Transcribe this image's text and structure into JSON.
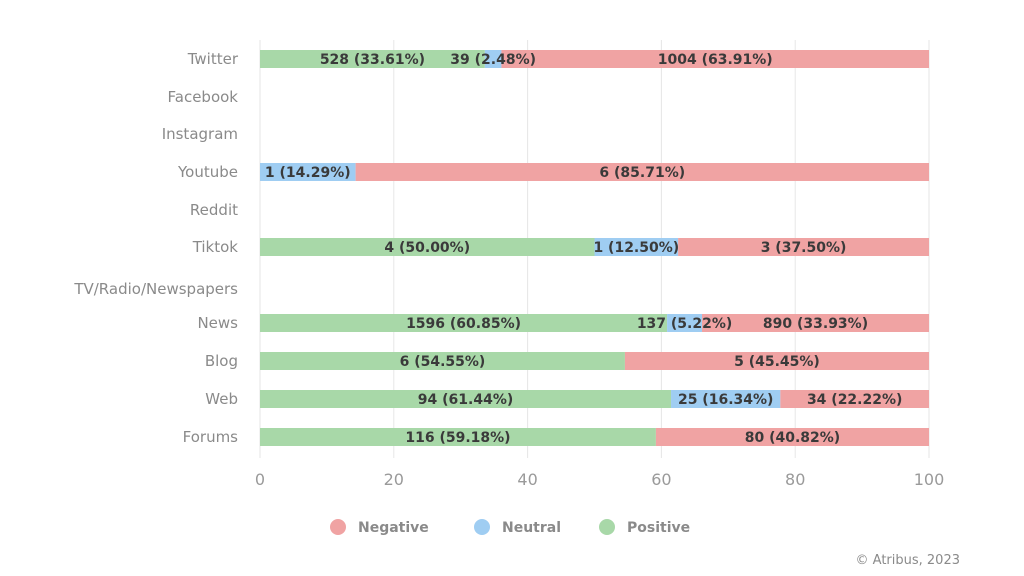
{
  "chart_data": {
    "type": "bar",
    "orientation": "horizontal",
    "stacked": true,
    "categories": [
      "Twitter",
      "Facebook",
      "Instagram",
      "Youtube",
      "Reddit",
      "Tiktok",
      "TV/Radio/Newspapers",
      "News",
      "Blog",
      "Web",
      "Forums"
    ],
    "xlim": [
      0,
      100
    ],
    "xticks": [
      0,
      20,
      40,
      60,
      80,
      100
    ],
    "grid": true,
    "legend_position": "bottom",
    "series": [
      {
        "name": "Positive",
        "color": "#a8d8a8",
        "values": [
          33.61,
          0,
          0,
          0,
          0,
          50.0,
          0,
          60.85,
          54.55,
          61.44,
          59.18
        ],
        "labels": [
          "528 (33.61%)",
          "",
          "",
          "",
          "",
          "4 (50.00%)",
          "",
          "1596 (60.85%)",
          "6 (54.55%)",
          "94 (61.44%)",
          "116 (59.18%)"
        ]
      },
      {
        "name": "Neutral",
        "color": "#9fcdf2",
        "values": [
          2.48,
          0,
          0,
          14.29,
          0,
          12.5,
          0,
          5.22,
          0,
          16.34,
          0
        ],
        "labels": [
          "39 (2.48%)",
          "",
          "",
          "1 (14.29%)",
          "",
          "1 (12.50%)",
          "",
          "137 (5.22%)",
          "",
          "25 (16.34%)",
          ""
        ]
      },
      {
        "name": "Negative",
        "color": "#f0a3a3",
        "values": [
          63.91,
          0,
          0,
          85.71,
          0,
          37.5,
          0,
          33.93,
          45.45,
          22.22,
          40.82
        ],
        "labels": [
          "1004 (63.91%)",
          "",
          "",
          "6 (85.71%)",
          "",
          "3 (37.50%)",
          "",
          "890 (33.93%)",
          "5 (45.45%)",
          "34 (22.22%)",
          "80 (40.82%)"
        ]
      }
    ],
    "legend_order": [
      "Negative",
      "Neutral",
      "Positive"
    ]
  },
  "credit": "© Atribus, 2023"
}
